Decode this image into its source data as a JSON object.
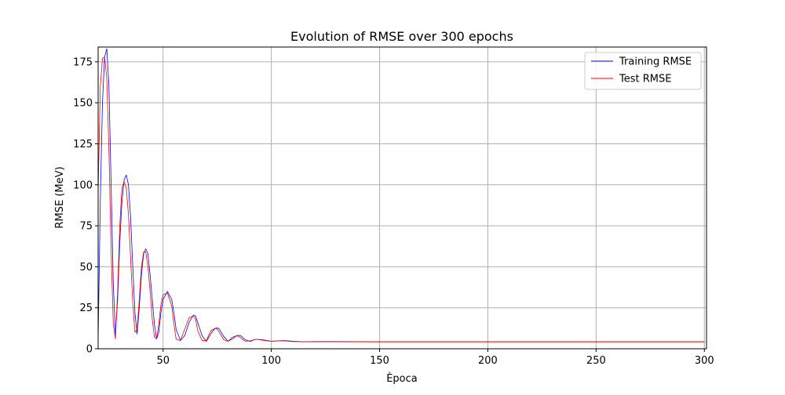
{
  "chart_data": {
    "type": "line",
    "title": "Evolution of RMSE over 300 epochs",
    "xlabel": "Època",
    "ylabel": "RMSE (MeV)",
    "xlim": [
      20,
      301
    ],
    "ylim": [
      0,
      184
    ],
    "xticks": [
      50,
      100,
      150,
      200,
      250,
      300
    ],
    "yticks": [
      0,
      25,
      50,
      75,
      100,
      125,
      150,
      175
    ],
    "grid": true,
    "legend_position": "top-right",
    "series": [
      {
        "name": "Training RMSE",
        "color": "#0000ff",
        "x": [
          20,
          21,
          22,
          23,
          24,
          25,
          26,
          27,
          28,
          29,
          30,
          31,
          32,
          33,
          34,
          35,
          36,
          37,
          38,
          39,
          40,
          41,
          42,
          43,
          44,
          45,
          46,
          47,
          48,
          49,
          50,
          52,
          54,
          55,
          56,
          58,
          60,
          62,
          64,
          65,
          66,
          68,
          70,
          72,
          74,
          75,
          76,
          78,
          80,
          82,
          84,
          85,
          86,
          88,
          90,
          93,
          96,
          100,
          103,
          106,
          110,
          115,
          120,
          130,
          150,
          200,
          250,
          300
        ],
        "y": [
          5,
          90,
          150,
          178,
          183,
          160,
          100,
          40,
          8,
          30,
          65,
          90,
          103,
          106,
          100,
          80,
          50,
          22,
          9,
          25,
          45,
          58,
          61,
          58,
          45,
          30,
          15,
          6,
          10,
          22,
          30,
          35,
          30,
          22,
          12,
          5,
          8,
          16,
          20.5,
          20,
          16,
          8,
          4.5,
          9,
          12.5,
          12.8,
          12,
          7.5,
          4.6,
          6,
          8,
          8.2,
          7.8,
          5.5,
          4.5,
          5.8,
          5.5,
          4.6,
          4.8,
          5,
          4.6,
          4.3,
          4.4,
          4.4,
          4.3,
          4.3,
          4.3,
          4.3
        ]
      },
      {
        "name": "Test RMSE",
        "color": "#ff0000",
        "x": [
          20,
          21,
          22,
          23,
          24,
          25,
          26,
          27,
          28,
          29,
          30,
          31,
          32,
          33,
          34,
          35,
          36,
          37,
          38,
          39,
          40,
          41,
          42,
          43,
          44,
          45,
          46,
          47,
          48,
          49,
          50,
          52,
          54,
          55,
          56,
          58,
          60,
          62,
          64,
          65,
          66,
          68,
          70,
          72,
          74,
          75,
          76,
          78,
          80,
          82,
          84,
          85,
          86,
          88,
          90,
          93,
          96,
          100,
          103,
          106,
          110,
          115,
          120,
          130,
          150,
          200,
          250,
          300
        ],
        "y": [
          95,
          160,
          177,
          178,
          165,
          120,
          60,
          15,
          6,
          35,
          75,
          98,
          102,
          98,
          82,
          55,
          28,
          10,
          12,
          30,
          50,
          59,
          59,
          50,
          35,
          18,
          7,
          6,
          15,
          27,
          33,
          34,
          26,
          15,
          6,
          5,
          12,
          19,
          20,
          18,
          11,
          5,
          5,
          11,
          12.5,
          12,
          10,
          5.5,
          4.5,
          7,
          8,
          7.5,
          6.5,
          4.6,
          4.8,
          5.8,
          5.2,
          4.5,
          4.8,
          4.8,
          4.4,
          4.3,
          4.3,
          4.3,
          4.2,
          4.2,
          4.2,
          4.2
        ]
      }
    ]
  }
}
